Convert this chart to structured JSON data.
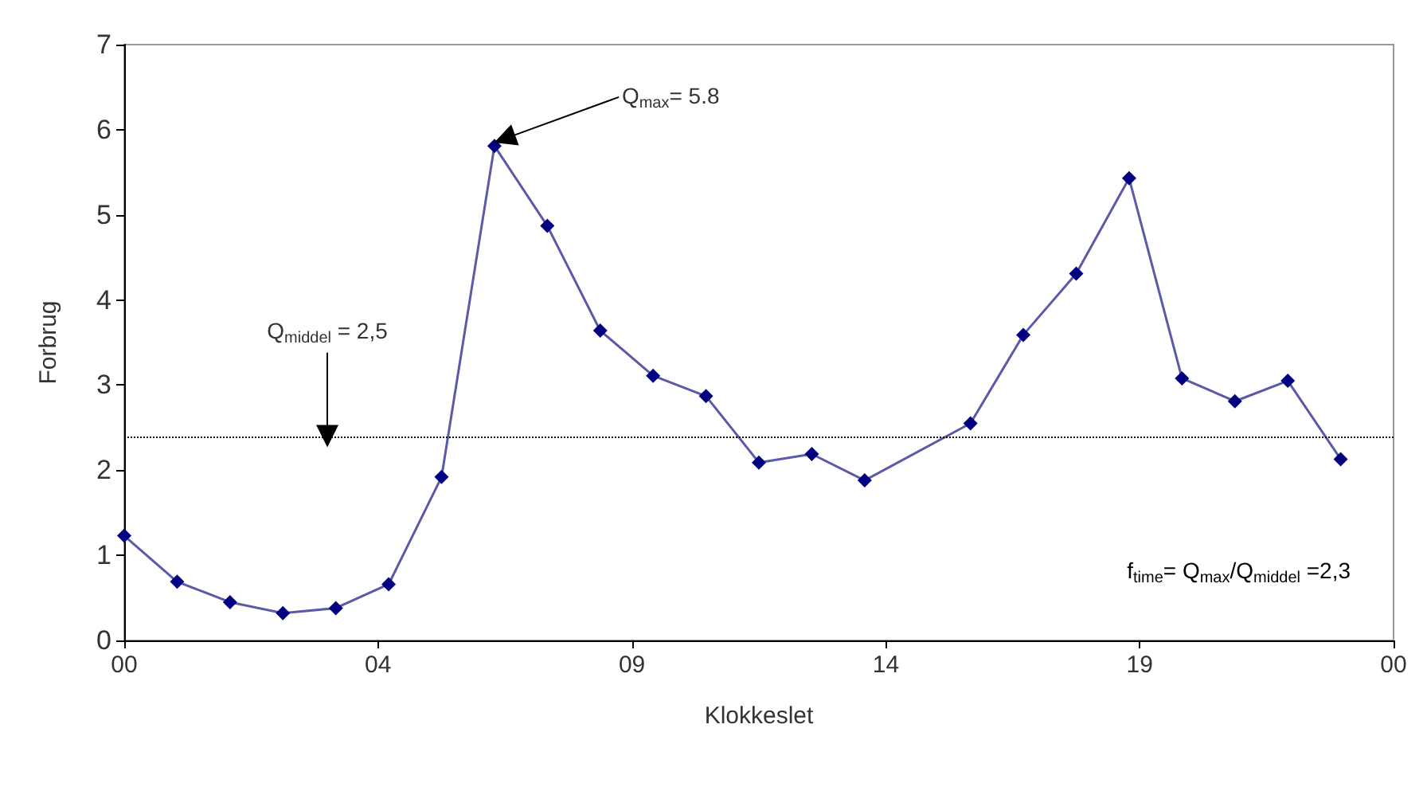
{
  "chart_data": {
    "type": "line",
    "xlabel": "Klokkeslet",
    "ylabel": "Forbrug",
    "x": [
      "2000-01-01T00:00",
      "2000-01-01T01:00",
      "2000-01-01T02:00",
      "2000-01-01T03:00",
      "2000-01-01T04:00",
      "2000-01-01T05:00",
      "2000-01-01T06:00",
      "2000-01-01T07:00",
      "2000-01-01T08:00",
      "2000-01-01T09:00",
      "2000-01-01T10:00",
      "2000-01-01T11:00",
      "2000-01-01T12:00",
      "2000-01-01T13:00",
      "2000-01-01T14:00",
      "2000-01-01T16:00",
      "2000-01-01T17:00",
      "2000-01-01T18:00",
      "2000-01-01T19:00",
      "2000-01-01T20:00",
      "2000-01-01T21:00",
      "2000-01-01T22:00",
      "2000-01-01T23:00"
    ],
    "series": [
      {
        "color": "#000080",
        "values": [
          1.23,
          0.69,
          0.45,
          0.32,
          0.38,
          0.66,
          1.92,
          5.81,
          4.87,
          3.64,
          3.11,
          2.87,
          2.09,
          2.19,
          1.88,
          2.55,
          3.59,
          4.31,
          5.43,
          3.08,
          2.81,
          3.05,
          2.13
        ]
      }
    ],
    "xlim": [
      "2000-01-01T00:00",
      "2000-01-02T00:00"
    ],
    "xticks": [
      {
        "value": "2000-01-01T00:00",
        "label": "00"
      },
      {
        "value": "2000-01-01T04:48",
        "label": "04"
      },
      {
        "value": "2000-01-01T09:36",
        "label": "09"
      },
      {
        "value": "2000-01-01T14:24",
        "label": "14"
      },
      {
        "value": "2000-01-01T19:12",
        "label": "19"
      },
      {
        "value": "2000-01-02T00:00",
        "label": "00"
      }
    ],
    "annotations": [
      {
        "text": "Q$_{max}$= 5.8",
        "x": "2000-01-01T07:00",
        "y": 5.81
      },
      "Q$_{middel}$ = 2,5",
      "f$_{time}$= Q$_{max}$/Q$_{middel}$ =2,3"
    ],
    "ylim": [
      0,
      7
    ],
    "yticks": [
      0,
      1,
      2,
      3,
      4,
      5,
      6,
      7
    ],
    "ref_lines": [
      {
        "axis": "y",
        "value": 2.4,
        "line_style": "dotted",
        "color": "#000000"
      }
    ],
    "grid": false,
    "marker": "diamond",
    "line_style": "solid"
  }
}
